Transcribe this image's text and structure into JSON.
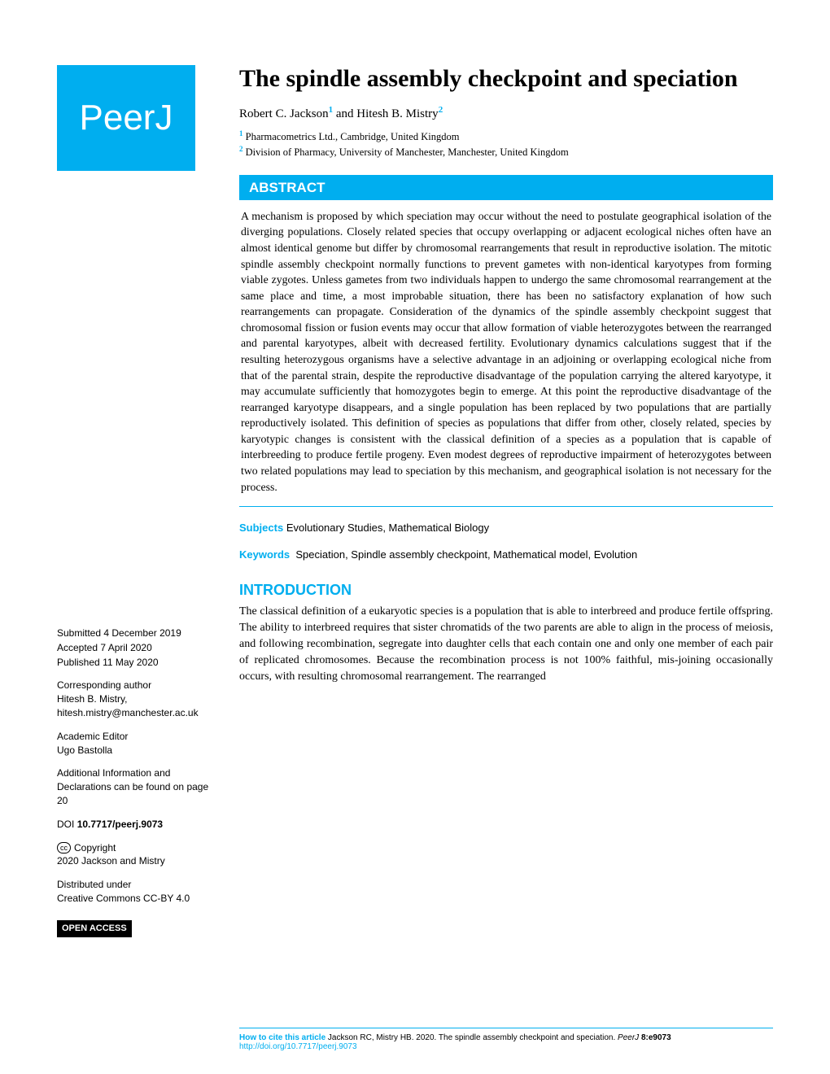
{
  "logo": {
    "text": "PeerJ"
  },
  "title": "The spindle assembly checkpoint and speciation",
  "authors": [
    {
      "name": "Robert C. Jackson",
      "sup": "1"
    },
    {
      "name": "Hitesh B. Mistry",
      "sup": "2"
    }
  ],
  "author_separator": " and ",
  "affiliations": [
    {
      "sup": "1",
      "text": "Pharmacometrics Ltd., Cambridge, United Kingdom"
    },
    {
      "sup": "2",
      "text": "Division of Pharmacy, University of Manchester, Manchester, United Kingdom"
    }
  ],
  "abstract": {
    "heading": "ABSTRACT",
    "text": "A mechanism is proposed by which speciation may occur without the need to postulate geographical isolation of the diverging populations. Closely related species that occupy overlapping or adjacent ecological niches often have an almost identical genome but differ by chromosomal rearrangements that result in reproductive isolation. The mitotic spindle assembly checkpoint normally functions to prevent gametes with non-identical karyotypes from forming viable zygotes. Unless gametes from two individuals happen to undergo the same chromosomal rearrangement at the same place and time, a most improbable situation, there has been no satisfactory explanation of how such rearrangements can propagate. Consideration of the dynamics of the spindle assembly checkpoint suggest that chromosomal fission or fusion events may occur that allow formation of viable heterozygotes between the rearranged and parental karyotypes, albeit with decreased fertility. Evolutionary dynamics calculations suggest that if the resulting heterozygous organisms have a selective advantage in an adjoining or overlapping ecological niche from that of the parental strain, despite the reproductive disadvantage of the population carrying the altered karyotype, it may accumulate sufficiently that homozygotes begin to emerge. At this point the reproductive disadvantage of the rearranged karyotype disappears, and a single population has been replaced by two populations that are partially reproductively isolated. This definition of species as populations that differ from other, closely related, species by karyotypic changes is consistent with the classical definition of a species as a population that is capable of interbreeding to produce fertile progeny. Even modest degrees of reproductive impairment of heterozygotes between two related populations may lead to speciation by this mechanism, and geographical isolation is not necessary for the process."
  },
  "subjects": {
    "label": "Subjects",
    "text": "Evolutionary Studies, Mathematical Biology"
  },
  "keywords": {
    "label": "Keywords",
    "text": "Speciation, Spindle assembly checkpoint, Mathematical model, Evolution"
  },
  "introduction": {
    "heading": "INTRODUCTION",
    "text": "The classical definition of a eukaryotic species is a population that is able to interbreed and produce fertile offspring. The ability to interbreed requires that sister chromatids of the two parents are able to align in the process of meiosis, and following recombination, segregate into daughter cells that each contain one and only one member of each pair of replicated chromosomes. Because the recombination process is not 100% faithful, mis-joining occasionally occurs, with resulting chromosomal rearrangement. The rearranged"
  },
  "sidebar": {
    "submitted": {
      "label": "Submitted",
      "value": "4 December 2019"
    },
    "accepted": {
      "label": "Accepted",
      "value": "7 April 2020"
    },
    "published": {
      "label": "Published",
      "value": "11 May 2020"
    },
    "corresponding": {
      "label": "Corresponding author",
      "name": "Hitesh B. Mistry,",
      "email": "hitesh.mistry@manchester.ac.uk"
    },
    "editor": {
      "label": "Academic Editor",
      "name": "Ugo Bastolla"
    },
    "additional": "Additional Information and Declarations can be found on page 20",
    "doi": {
      "label": "DOI",
      "value": "10.7717/peerj.9073"
    },
    "copyright": {
      "badge": "cc",
      "label": "Copyright",
      "holder": "2020 Jackson and Mistry"
    },
    "license": {
      "line1": "Distributed under",
      "line2": "Creative Commons CC-BY 4.0"
    },
    "open_access": "OPEN ACCESS"
  },
  "footer": {
    "cite_label": "How to cite this article",
    "cite_text": "Jackson RC, Mistry HB. 2020. The spindle assembly checkpoint and speciation. ",
    "journal": "PeerJ",
    "ref": "8:e9073",
    "url": "http://doi.org/10.7717/peerj.9073"
  },
  "colors": {
    "brand": "#00aeef",
    "text": "#000000",
    "bg": "#ffffff"
  }
}
